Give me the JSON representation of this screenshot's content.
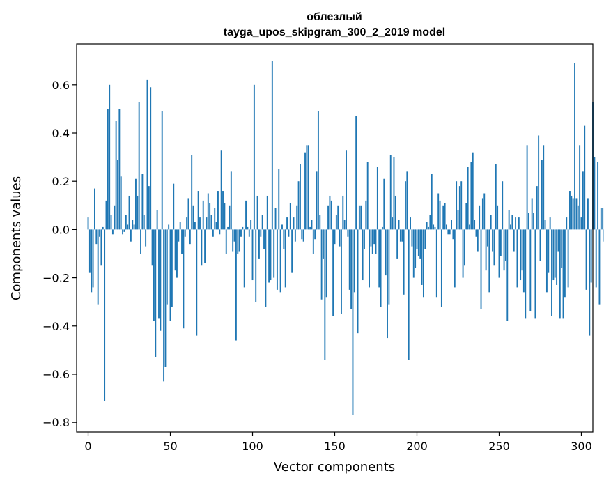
{
  "chart_data": {
    "type": "bar",
    "title": "облезлый",
    "subtitle": "tayga_upos_skipgram_300_2_2019 model",
    "xlabel": "Vector components",
    "ylabel": "Components values",
    "xlim": [
      -7,
      307
    ],
    "ylim": [
      -0.84,
      0.77
    ],
    "xticks": [
      0,
      50,
      100,
      150,
      200,
      250,
      300
    ],
    "xtick_labels": [
      "0",
      "50",
      "100",
      "150",
      "200",
      "250",
      "300"
    ],
    "yticks": [
      -0.8,
      -0.6,
      -0.4,
      -0.2,
      0.0,
      0.2,
      0.4,
      0.6
    ],
    "ytick_labels": [
      "−0.8",
      "−0.6",
      "−0.4",
      "−0.2",
      "0.0",
      "0.2",
      "0.4",
      "0.6"
    ],
    "grid": false,
    "bar_color": "#1f77b4",
    "values": [
      0.05,
      -0.18,
      -0.26,
      -0.24,
      0.17,
      -0.06,
      -0.31,
      -0.03,
      -0.15,
      0.01,
      -0.71,
      0.12,
      0.5,
      0.6,
      0.06,
      -0.02,
      0.1,
      0.45,
      0.29,
      0.5,
      0.22,
      -0.02,
      -0.01,
      0.06,
      0.02,
      0.14,
      -0.05,
      0.04,
      0.02,
      0.21,
      0.14,
      0.53,
      -0.1,
      0.23,
      0.06,
      -0.07,
      0.62,
      0.18,
      0.59,
      -0.15,
      -0.38,
      -0.53,
      0.08,
      -0.37,
      -0.42,
      0.49,
      -0.63,
      -0.57,
      -0.31,
      0.02,
      -0.38,
      -0.32,
      0.19,
      -0.17,
      -0.2,
      -0.05,
      0.03,
      -0.1,
      -0.41,
      -0.03,
      0.05,
      0.13,
      -0.06,
      0.31,
      0.1,
      0.03,
      -0.44,
      0.16,
      0.05,
      -0.15,
      0.12,
      -0.14,
      0.05,
      0.15,
      0.11,
      0.06,
      -0.03,
      0.09,
      0.03,
      0.16,
      -0.02,
      0.33,
      0.16,
      0.11,
      -0.1,
      0.01,
      0.1,
      0.24,
      -0.09,
      -0.05,
      -0.46,
      -0.1,
      -0.09,
      -0.03,
      0.01,
      -0.24,
      0.12,
      0.01,
      -0.03,
      0.04,
      -0.21,
      0.6,
      -0.3,
      0.14,
      -0.12,
      -0.03,
      0.06,
      -0.08,
      -0.32,
      0.14,
      -0.22,
      -0.21,
      0.7,
      -0.2,
      0.09,
      -0.25,
      0.25,
      -0.26,
      0.02,
      -0.08,
      -0.24,
      0.05,
      -0.03,
      0.11,
      -0.18,
      0.05,
      -0.05,
      0.1,
      0.2,
      0.27,
      -0.04,
      -0.05,
      0.32,
      0.35,
      0.35,
      0.01,
      0.04,
      -0.1,
      -0.04,
      0.24,
      0.49,
      0.06,
      -0.29,
      -0.12,
      -0.54,
      -0.28,
      0.1,
      0.14,
      0.12,
      -0.36,
      -0.06,
      0.06,
      0.1,
      -0.07,
      -0.35,
      0.14,
      0.04,
      0.33,
      -0.03,
      -0.25,
      -0.33,
      -0.77,
      -0.26,
      0.47,
      -0.43,
      0.1,
      0.1,
      -0.21,
      -0.08,
      0.12,
      0.28,
      -0.24,
      -0.07,
      -0.1,
      -0.06,
      -0.1,
      0.26,
      -0.24,
      -0.32,
      0.01,
      0.21,
      -0.19,
      -0.45,
      -0.31,
      0.31,
      0.05,
      0.3,
      0.14,
      -0.12,
      0.04,
      -0.05,
      -0.05,
      -0.27,
      0.2,
      0.24,
      -0.54,
      0.05,
      -0.07,
      -0.2,
      -0.16,
      -0.08,
      -0.11,
      -0.12,
      -0.23,
      -0.28,
      -0.08,
      0.03,
      0.01,
      0.06,
      0.23,
      0.02,
      0.01,
      -0.28,
      0.15,
      0.12,
      -0.32,
      0.1,
      0.11,
      0.02,
      -0.02,
      -0.02,
      0.04,
      -0.04,
      -0.24,
      0.2,
      0.08,
      0.18,
      0.2,
      -0.2,
      -0.15,
      0.11,
      0.26,
      0.02,
      0.28,
      0.32,
      0.04,
      -0.03,
      -0.09,
      0.1,
      -0.33,
      0.13,
      0.15,
      -0.17,
      -0.07,
      -0.26,
      0.06,
      -0.09,
      -0.15,
      0.27,
      0.1,
      -0.2,
      -0.11,
      0.2,
      -0.17,
      -0.13,
      -0.38,
      0.08,
      0.02,
      0.06,
      -0.09,
      0.05,
      -0.24,
      0.05,
      -0.21,
      -0.17,
      -0.26,
      -0.37,
      0.35,
      0.07,
      -0.34,
      0.13,
      0.07,
      -0.37,
      0.18,
      0.39,
      -0.13,
      0.29,
      0.35,
      0.04,
      -0.26,
      -0.18,
      0.05,
      -0.36,
      -0.21,
      -0.2,
      -0.23,
      -0.09,
      -0.37,
      -0.16,
      -0.37,
      -0.28,
      0.05,
      -0.24,
      0.16,
      0.14,
      0.13,
      0.69,
      0.13,
      0.1,
      0.35,
      0.05,
      0.24,
      0.43,
      -0.25,
      0.13,
      -0.44,
      -0.22,
      0.53,
      0.3,
      -0.24,
      0.28,
      -0.31,
      0.09,
      0.09,
      -0.05,
      -0.43
    ]
  }
}
